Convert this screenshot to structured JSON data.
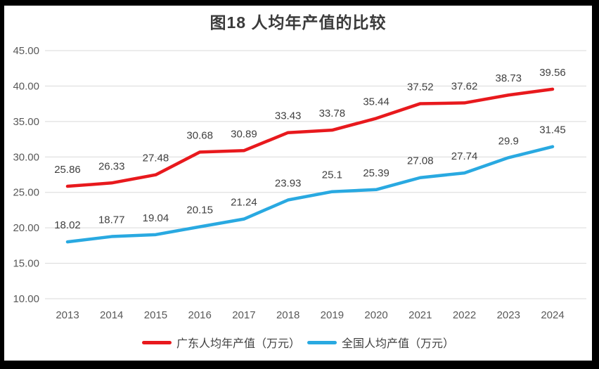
{
  "chart_data": {
    "type": "line",
    "title": "图18 人均年产值的比较",
    "categories": [
      "2013",
      "2014",
      "2015",
      "2016",
      "2017",
      "2018",
      "2019",
      "2020",
      "2021",
      "2022",
      "2023",
      "2024"
    ],
    "series": [
      {
        "name": "广东人均年产值（万元）",
        "color": "#e8191d",
        "values": [
          25.86,
          26.33,
          27.48,
          30.68,
          30.89,
          33.43,
          33.78,
          35.44,
          37.52,
          37.62,
          38.73,
          39.56
        ]
      },
      {
        "name": "全国人均产值（万元）",
        "color": "#29a9e1",
        "values": [
          18.02,
          18.77,
          19.04,
          20.15,
          21.24,
          23.93,
          25.1,
          25.39,
          27.08,
          27.74,
          29.9,
          31.45
        ]
      }
    ],
    "xlabel": "",
    "ylabel": "",
    "ylim": [
      10,
      45
    ],
    "ytick_step": 5,
    "ytick_decimals": 2,
    "grid": "horizontal",
    "legend_position": "bottom",
    "data_labels": true,
    "markers": false
  },
  "style": {
    "title_color": "#3b3b3b",
    "axis_text_color": "#595959",
    "data_label_color": "#404040",
    "legend_text_color": "#404040",
    "grid_color": "#d9d9d9",
    "frame_border_color": "#000000",
    "background_color": "#ffffff"
  }
}
